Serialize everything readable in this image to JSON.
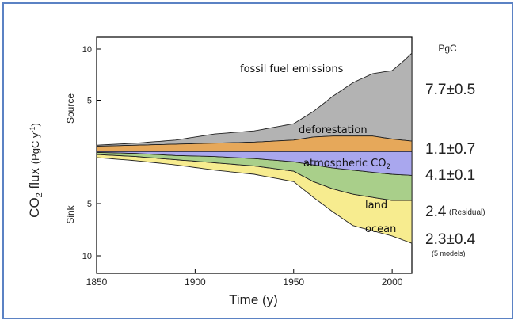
{
  "chart_data": {
    "type": "area",
    "ylabel": "CO2 flux (PgC y-1)",
    "ylabel_parts": {
      "main": "CO",
      "sub": "2",
      "rest": " flux ",
      "unit": "(PgC y",
      "unit_sup": "-1",
      "unit_end": ")"
    },
    "xlabel": "Time (y)",
    "source_label": "Source",
    "sink_label": "Sink",
    "unit_label": "PgC",
    "xlim": [
      1850,
      2010
    ],
    "x_ticks": [
      1850,
      1900,
      1950,
      2000
    ],
    "ylim_source": [
      0,
      10
    ],
    "ylim_sink": [
      0,
      10
    ],
    "y_ticks_source": [
      10,
      5
    ],
    "y_ticks_sink": [
      5,
      10
    ],
    "colors": {
      "fossil": "#b3b3b3",
      "deforestation": "#e6a85a",
      "atmospheric": "#f7ec8f",
      "land": "#a9cf8a",
      "ocean": "#a9a7ee",
      "frame_border": "#5b82c4"
    },
    "series": [
      {
        "name": "fossil fuel emissions",
        "region": "source",
        "x": [
          1850,
          1870,
          1890,
          1910,
          1930,
          1950,
          1960,
          1970,
          1980,
          1990,
          2000,
          2005,
          2010
        ],
        "values": [
          0.1,
          0.2,
          0.4,
          0.9,
          1.1,
          1.6,
          2.5,
          3.9,
          5.2,
          6.1,
          6.7,
          7.6,
          8.6
        ]
      },
      {
        "name": "deforestation",
        "region": "source",
        "x": [
          1850,
          1870,
          1890,
          1910,
          1930,
          1950,
          1960,
          1970,
          1980,
          1990,
          2000,
          2010
        ],
        "values": [
          0.5,
          0.6,
          0.7,
          0.8,
          0.9,
          1.1,
          1.4,
          1.5,
          1.5,
          1.5,
          1.2,
          1.0
        ]
      },
      {
        "name": "atmospheric CO2",
        "name_parts": {
          "main": "atmospheric CO",
          "sub": "2"
        },
        "region": "sink",
        "x": [
          1850,
          1870,
          1890,
          1910,
          1930,
          1950,
          1960,
          1970,
          1980,
          1990,
          2000,
          2010
        ],
        "values": [
          0.3,
          0.4,
          0.5,
          0.7,
          0.8,
          1.0,
          1.5,
          2.2,
          3.0,
          3.2,
          3.4,
          4.1
        ]
      },
      {
        "name": "land",
        "region": "sink",
        "x": [
          1850,
          1870,
          1890,
          1910,
          1930,
          1950,
          1960,
          1970,
          1980,
          1990,
          2000,
          2010
        ],
        "values": [
          0.2,
          0.3,
          0.4,
          0.6,
          0.7,
          0.9,
          1.6,
          2.0,
          2.3,
          2.4,
          2.5,
          2.4
        ]
      },
      {
        "name": "ocean",
        "region": "sink",
        "x": [
          1850,
          1870,
          1890,
          1910,
          1930,
          1950,
          1960,
          1970,
          1980,
          1990,
          2000,
          2010
        ],
        "values": [
          0.1,
          0.2,
          0.4,
          0.5,
          0.7,
          1.0,
          1.3,
          1.6,
          1.8,
          2.0,
          2.2,
          2.3
        ]
      }
    ],
    "annotations": [
      {
        "text": "7.7±0.5",
        "note": ""
      },
      {
        "text": "1.1±0.7",
        "note": ""
      },
      {
        "text": "4.1±0.1",
        "note": ""
      },
      {
        "text": "2.4",
        "note": "(Residual)"
      },
      {
        "text": "2.3±0.4",
        "note": "(5 models)"
      }
    ]
  }
}
